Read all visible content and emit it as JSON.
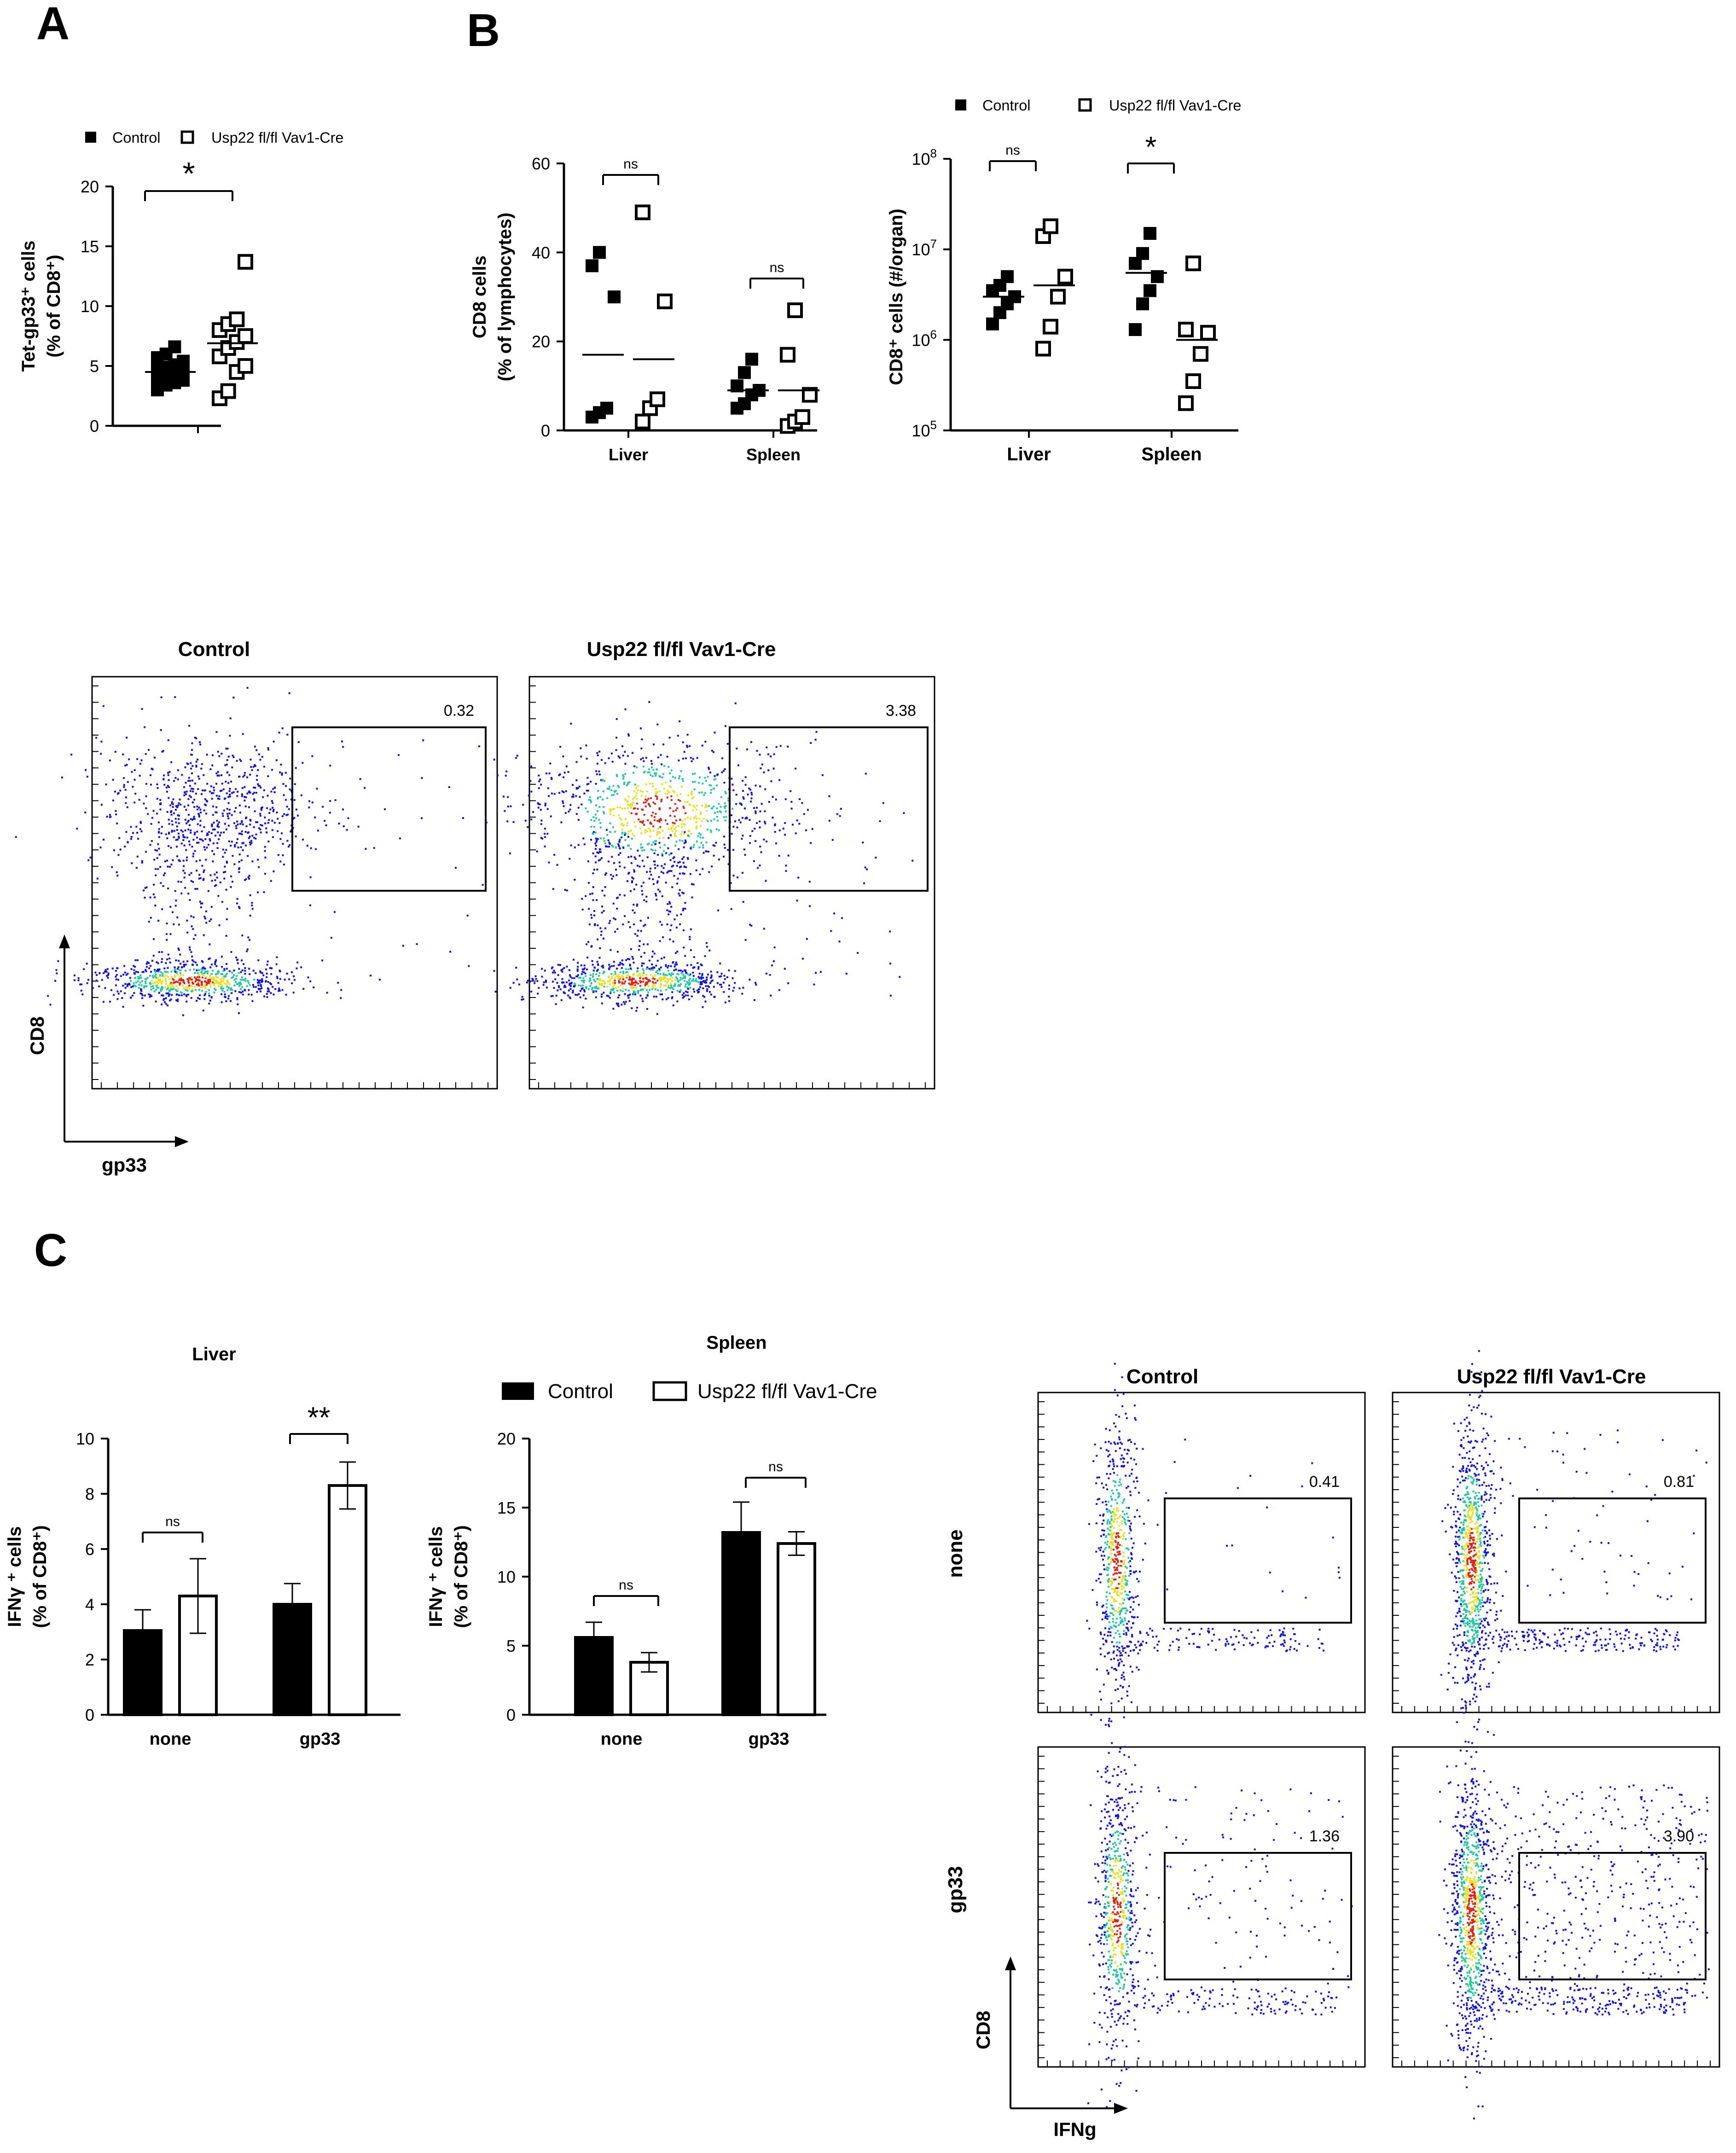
{
  "figure": {
    "panel_labels": [
      "A",
      "B",
      "C"
    ]
  },
  "legend": {
    "control": "Control",
    "ko": "Usp22 fl/fl Vav1-Cre"
  },
  "colors": {
    "ink": "#000000",
    "dot_blue": "#1010e0",
    "density_green": "#20c8a0",
    "density_yellow": "#e8e020",
    "density_red": "#e02010"
  },
  "chart_data": [
    {
      "id": "A",
      "type": "scatter",
      "title": "",
      "ylabel_line1": "Tet-gp33⁺ cells",
      "ylabel_line2": "(% of CD8⁺)",
      "ylim": [
        0,
        20
      ],
      "yticks": [
        "0",
        "5",
        "10",
        "15",
        "20"
      ],
      "groups": [
        {
          "name": "Control",
          "values": [
            3.0,
            3.4,
            3.6,
            3.8,
            4.0,
            4.2,
            4.3,
            4.5,
            4.7,
            4.9,
            5.1,
            5.4,
            5.7,
            6.0,
            6.6
          ],
          "mean": 4.5
        },
        {
          "name": "Usp22 fl/fl Vav1-Cre",
          "values": [
            2.3,
            2.9,
            4.5,
            5.0,
            5.8,
            6.5,
            7.0,
            7.5,
            8.0,
            8.5,
            8.9,
            13.7
          ],
          "mean": 6.9
        }
      ],
      "significance": "*"
    },
    {
      "id": "B1",
      "type": "scatter",
      "ylabel_line1": "CD8⁺ cells",
      "ylabel_line2": "(% of lymphocytes)",
      "ylim": [
        0,
        60
      ],
      "yticks": [
        "0",
        "20",
        "40",
        "60"
      ],
      "categories": [
        "Liver",
        "Spleen"
      ],
      "series": [
        {
          "name": "Control",
          "values": [
            [
              3,
              4,
              5,
              30,
              37,
              40
            ],
            [
              5,
              6,
              8,
              9,
              10,
              13,
              16
            ]
          ],
          "means": [
            17,
            9
          ]
        },
        {
          "name": "Usp22 fl/fl Vav1-Cre",
          "values": [
            [
              2,
              5,
              7,
              29,
              49
            ],
            [
              1,
              2,
              3,
              8,
              17,
              27
            ]
          ],
          "means": [
            16,
            9
          ]
        }
      ],
      "significance": [
        "ns",
        "ns"
      ]
    },
    {
      "id": "B2",
      "type": "scatter",
      "scale": "log",
      "ylabel": "CD8⁺ cells (#/organ)",
      "ylim": [
        100000,
        100000000
      ],
      "ytick_base": "10",
      "ytick_exponents": [
        "5",
        "6",
        "7",
        "8"
      ],
      "categories": [
        "Liver",
        "Spleen"
      ],
      "series": [
        {
          "name": "Control",
          "values": [
            [
              1500000,
              2000000,
              2500000,
              3000000,
              3500000,
              4000000,
              5000000
            ],
            [
              1300000,
              2500000,
              3500000,
              5000000,
              7000000,
              9000000,
              15000000
            ]
          ],
          "means": [
            3000000,
            5500000
          ]
        },
        {
          "name": "Usp22 fl/fl Vav1-Cre",
          "values": [
            [
              800000,
              1400000,
              3000000,
              5000000,
              14000000,
              18000000
            ],
            [
              200000,
              350000,
              700000,
              1200000,
              1300000,
              7000000
            ]
          ],
          "means": [
            4000000,
            1000000
          ]
        }
      ],
      "significance": [
        "ns",
        "*"
      ]
    },
    {
      "id": "C1",
      "type": "bar",
      "title": "Liver",
      "ylabel_line1": "IFNγ ⁺ cells",
      "ylabel_line2": "(% of CD8⁺)",
      "ylim": [
        0,
        10
      ],
      "yticks": [
        "0",
        "2",
        "4",
        "6",
        "8",
        "10"
      ],
      "categories": [
        "none",
        "gp33"
      ],
      "series": [
        {
          "name": "Control",
          "values": [
            3.05,
            4.0
          ],
          "errors": [
            0.75,
            0.75
          ]
        },
        {
          "name": "Usp22 fl/fl Vav1-Cre",
          "values": [
            4.3,
            8.3
          ],
          "errors": [
            1.35,
            0.85
          ]
        }
      ],
      "significance": [
        "ns",
        "**"
      ]
    },
    {
      "id": "C2",
      "type": "bar",
      "title": "Spleen",
      "ylabel_line1": "IFNγ ⁺ cells",
      "ylabel_line2": "(% of CD8⁺)",
      "ylim": [
        0,
        20
      ],
      "yticks": [
        "0",
        "5",
        "10",
        "15",
        "20"
      ],
      "categories": [
        "none",
        "gp33"
      ],
      "series": [
        {
          "name": "Control",
          "values": [
            5.6,
            13.2
          ],
          "errors": [
            1.1,
            2.2
          ]
        },
        {
          "name": "Usp22 fl/fl Vav1-Cre",
          "values": [
            3.8,
            12.4
          ],
          "errors": [
            0.7,
            0.85
          ]
        }
      ],
      "significance": [
        "ns",
        "ns"
      ]
    }
  ],
  "flow_b": {
    "titles": [
      "Control",
      "Usp22 fl/fl Vav1-Cre"
    ],
    "gate_values": [
      "0.32",
      "3.38"
    ],
    "x_label": "gp33",
    "y_label": "CD8"
  },
  "flow_c": {
    "titles": [
      "Control",
      "Usp22 fl/fl Vav1-Cre"
    ],
    "row_labels": [
      "none",
      "gp33"
    ],
    "gate_values": [
      [
        "0.41",
        "0.81"
      ],
      [
        "1.36",
        "3.90"
      ]
    ],
    "x_label": "IFNg",
    "y_label": "CD8"
  }
}
